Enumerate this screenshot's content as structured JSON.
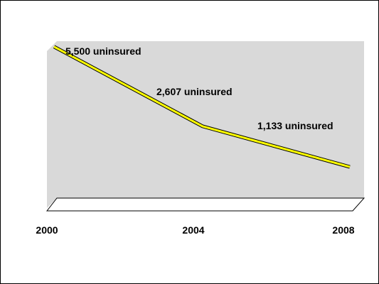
{
  "chart_data": {
    "type": "line",
    "categories": [
      "2000",
      "2004",
      "2008"
    ],
    "values": [
      5500,
      2607,
      1133
    ],
    "data_labels": [
      "5,500 uninsured",
      "2,607 uninsured",
      "1,133 uninsured"
    ],
    "ylim": [
      0,
      5700
    ],
    "grid": false,
    "legend": "none",
    "title": "",
    "xlabel": "",
    "ylabel": ""
  },
  "colors": {
    "line": "#ffff00",
    "wall": "#d9d9d9",
    "floor": "#ffffff"
  }
}
